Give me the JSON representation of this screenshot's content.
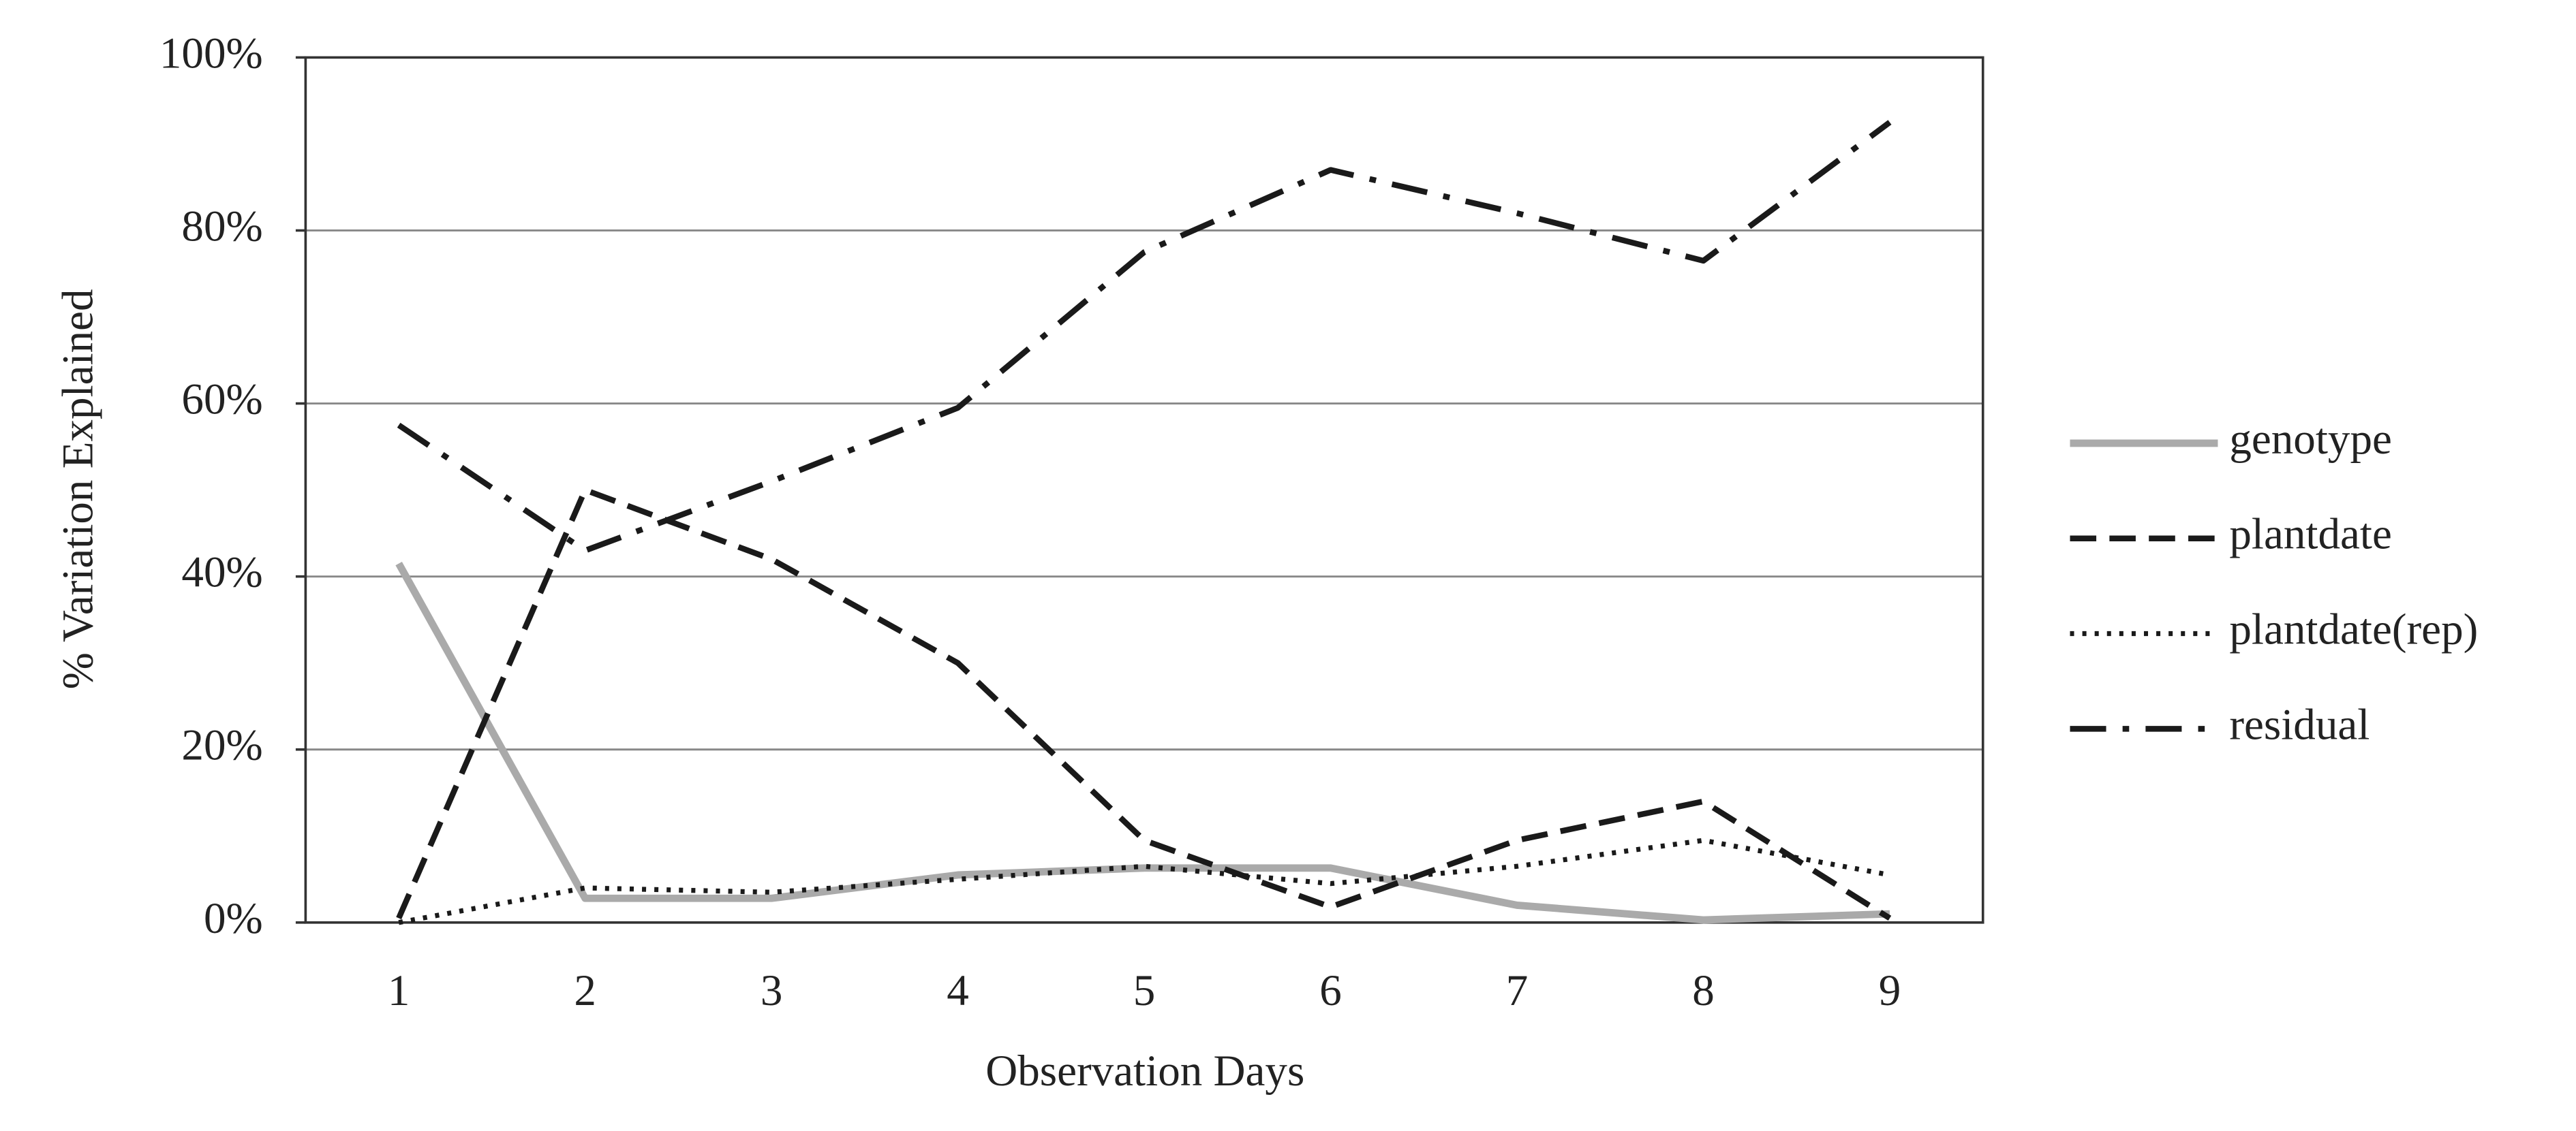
{
  "chart_data": {
    "type": "line",
    "x_label": "Observation Days",
    "y_label": "% Variation Explained",
    "categories": [
      "1",
      "2",
      "3",
      "4",
      "5",
      "6",
      "7",
      "8",
      "9"
    ],
    "ylim": [
      0,
      100
    ],
    "yticks": [
      {
        "value": 0,
        "label": "0%"
      },
      {
        "value": 20,
        "label": "20%"
      },
      {
        "value": 40,
        "label": "40%"
      },
      {
        "value": 60,
        "label": "60%"
      },
      {
        "value": 80,
        "label": "80%"
      },
      {
        "value": 100,
        "label": "100%"
      }
    ],
    "grid": true,
    "legend": "right",
    "series": [
      {
        "name": "genotype",
        "color": "#aaaaaa",
        "style": "solid",
        "values": [
          41.5,
          2.8,
          2.8,
          5.5,
          6.3,
          6.3,
          2,
          0.3,
          1
        ]
      },
      {
        "name": "plantdate",
        "color": "#1a1a1a",
        "style": "dashed",
        "values": [
          0.5,
          50,
          42,
          30,
          9.5,
          1.8,
          9.5,
          14,
          0.5
        ]
      },
      {
        "name": "plantdate(rep)",
        "color": "#1a1a1a",
        "style": "dotted",
        "values": [
          0,
          4,
          3.5,
          5,
          6.5,
          4.5,
          6.5,
          9.5,
          5.5
        ]
      },
      {
        "name": "residual",
        "color": "#1a1a1a",
        "style": "dashdot",
        "values": [
          57.5,
          43,
          51,
          59.5,
          77.5,
          87,
          82,
          76.5,
          92.5
        ]
      }
    ]
  }
}
